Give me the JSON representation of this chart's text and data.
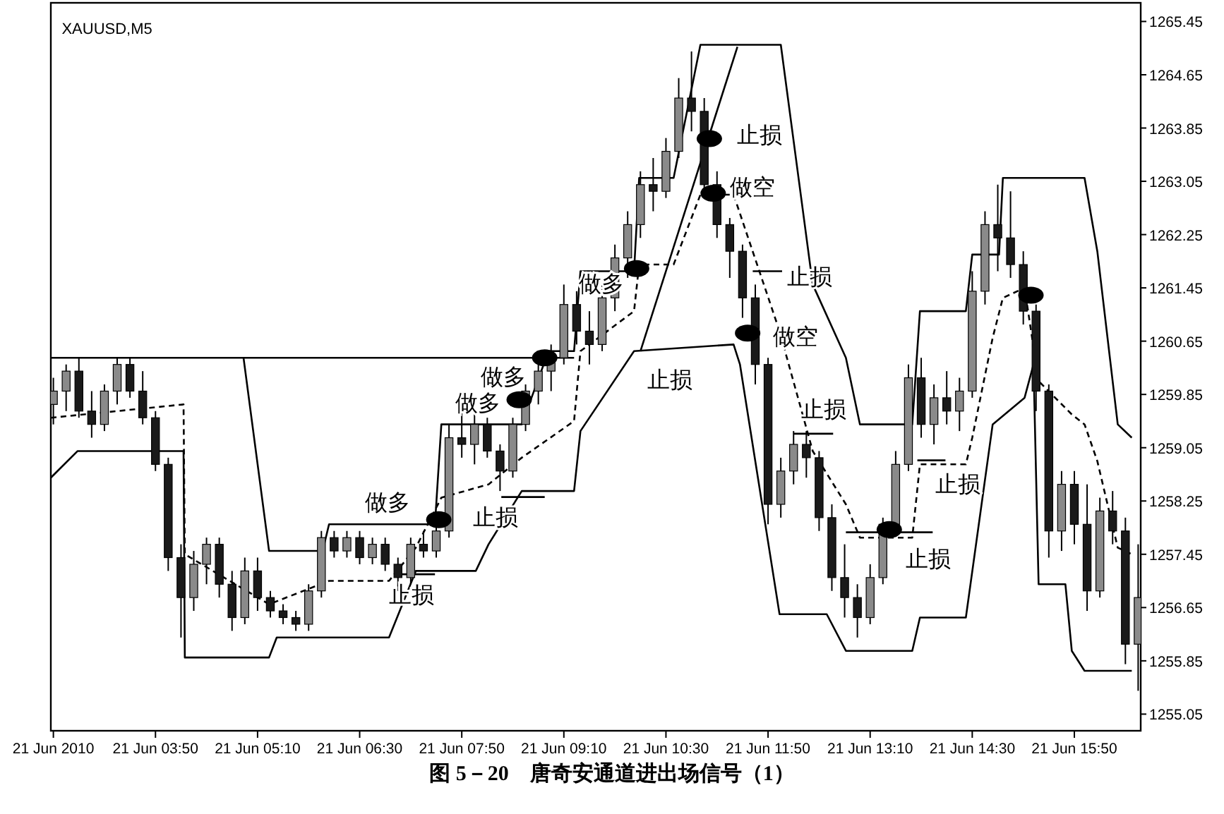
{
  "chart_data": {
    "type": "candlestick",
    "title": "图 5－20　唐奇安通道进出场信号（1）",
    "annotations": [
      "XAUUSD,M5",
      "做多",
      "止损",
      "止损",
      "做多",
      "做多",
      "做多",
      "止损",
      "止损",
      "做空",
      "止损",
      "做空",
      "止损",
      "止损",
      "止损"
    ],
    "x": [
      "2010-06-21T02:30",
      "2010-06-21T02:40",
      "2010-06-21T02:50",
      "2010-06-21T03:00",
      "2010-06-21T03:10",
      "2010-06-21T03:20",
      "2010-06-21T03:30",
      "2010-06-21T03:40",
      "2010-06-21T03:50",
      "2010-06-21T04:00",
      "2010-06-21T04:10",
      "2010-06-21T04:20",
      "2010-06-21T04:30",
      "2010-06-21T04:40",
      "2010-06-21T04:50",
      "2010-06-21T05:00",
      "2010-06-21T05:10",
      "2010-06-21T05:20",
      "2010-06-21T05:30",
      "2010-06-21T05:40",
      "2010-06-21T05:50",
      "2010-06-21T06:00",
      "2010-06-21T06:10",
      "2010-06-21T06:20",
      "2010-06-21T06:30",
      "2010-06-21T06:40",
      "2010-06-21T06:50",
      "2010-06-21T07:00",
      "2010-06-21T07:10",
      "2010-06-21T07:20",
      "2010-06-21T07:30",
      "2010-06-21T07:40",
      "2010-06-21T07:50",
      "2010-06-21T08:00",
      "2010-06-21T08:10",
      "2010-06-21T08:20",
      "2010-06-21T08:30",
      "2010-06-21T08:40",
      "2010-06-21T08:50",
      "2010-06-21T09:00",
      "2010-06-21T09:10",
      "2010-06-21T09:20",
      "2010-06-21T09:30",
      "2010-06-21T09:40",
      "2010-06-21T09:50",
      "2010-06-21T10:00",
      "2010-06-21T10:10",
      "2010-06-21T10:20",
      "2010-06-21T10:30",
      "2010-06-21T10:40",
      "2010-06-21T10:50",
      "2010-06-21T11:00",
      "2010-06-21T11:10",
      "2010-06-21T11:20",
      "2010-06-21T11:30",
      "2010-06-21T11:40",
      "2010-06-21T11:50",
      "2010-06-21T12:00",
      "2010-06-21T12:10",
      "2010-06-21T12:20",
      "2010-06-21T12:30",
      "2010-06-21T12:40",
      "2010-06-21T12:50",
      "2010-06-21T13:00",
      "2010-06-21T13:10",
      "2010-06-21T13:20",
      "2010-06-21T13:30",
      "2010-06-21T13:40",
      "2010-06-21T13:50",
      "2010-06-21T14:00",
      "2010-06-21T14:10",
      "2010-06-21T14:20",
      "2010-06-21T14:30",
      "2010-06-21T14:40",
      "2010-06-21T14:50",
      "2010-06-21T15:00",
      "2010-06-21T15:10",
      "2010-06-21T15:20",
      "2010-06-21T15:30",
      "2010-06-21T15:40",
      "2010-06-21T15:50",
      "2010-06-21T16:00",
      "2010-06-21T16:10",
      "2010-06-21T16:20",
      "2010-06-21T16:30",
      "2010-06-21T16:40"
    ],
    "ohlc": [
      [
        1259.7,
        1260.1,
        1259.4,
        1259.9
      ],
      [
        1259.9,
        1260.3,
        1259.6,
        1260.2
      ],
      [
        1260.2,
        1260.4,
        1259.5,
        1259.6
      ],
      [
        1259.6,
        1259.9,
        1259.2,
        1259.4
      ],
      [
        1259.4,
        1260.0,
        1259.3,
        1259.9
      ],
      [
        1259.9,
        1260.4,
        1259.7,
        1260.3
      ],
      [
        1260.3,
        1260.4,
        1259.8,
        1259.9
      ],
      [
        1259.9,
        1260.2,
        1259.4,
        1259.5
      ],
      [
        1259.5,
        1259.6,
        1258.7,
        1258.8
      ],
      [
        1258.8,
        1258.9,
        1257.2,
        1257.4
      ],
      [
        1257.4,
        1257.6,
        1256.2,
        1256.8
      ],
      [
        1256.8,
        1257.5,
        1256.6,
        1257.3
      ],
      [
        1257.3,
        1257.7,
        1257.0,
        1257.6
      ],
      [
        1257.6,
        1257.7,
        1256.8,
        1257.0
      ],
      [
        1257.0,
        1257.2,
        1256.3,
        1256.5
      ],
      [
        1256.5,
        1257.4,
        1256.4,
        1257.2
      ],
      [
        1257.2,
        1257.4,
        1256.6,
        1256.8
      ],
      [
        1256.8,
        1256.9,
        1256.5,
        1256.6
      ],
      [
        1256.6,
        1256.7,
        1256.4,
        1256.5
      ],
      [
        1256.5,
        1256.6,
        1256.3,
        1256.4
      ],
      [
        1256.4,
        1257.0,
        1256.3,
        1256.9
      ],
      [
        1256.9,
        1257.8,
        1256.8,
        1257.7
      ],
      [
        1257.7,
        1257.8,
        1257.4,
        1257.5
      ],
      [
        1257.5,
        1257.8,
        1257.4,
        1257.7
      ],
      [
        1257.7,
        1257.8,
        1257.3,
        1257.4
      ],
      [
        1257.4,
        1257.7,
        1257.3,
        1257.6
      ],
      [
        1257.6,
        1257.7,
        1257.2,
        1257.3
      ],
      [
        1257.3,
        1257.4,
        1256.9,
        1257.1
      ],
      [
        1257.1,
        1257.7,
        1257.0,
        1257.6
      ],
      [
        1257.6,
        1257.8,
        1257.4,
        1257.5
      ],
      [
        1257.5,
        1257.9,
        1257.4,
        1257.8
      ],
      [
        1257.8,
        1259.4,
        1257.7,
        1259.2
      ],
      [
        1259.2,
        1259.6,
        1258.9,
        1259.1
      ],
      [
        1259.1,
        1259.6,
        1258.8,
        1259.4
      ],
      [
        1259.4,
        1259.5,
        1258.9,
        1259.0
      ],
      [
        1259.0,
        1259.1,
        1258.4,
        1258.7
      ],
      [
        1258.7,
        1259.5,
        1258.6,
        1259.4
      ],
      [
        1259.4,
        1260.0,
        1259.3,
        1259.9
      ],
      [
        1259.9,
        1260.4,
        1259.7,
        1260.2
      ],
      [
        1260.2,
        1260.6,
        1259.9,
        1260.4
      ],
      [
        1260.4,
        1261.5,
        1260.3,
        1261.2
      ],
      [
        1261.2,
        1261.4,
        1260.6,
        1260.8
      ],
      [
        1260.8,
        1261.1,
        1260.3,
        1260.6
      ],
      [
        1260.6,
        1261.5,
        1260.5,
        1261.3
      ],
      [
        1261.3,
        1262.1,
        1261.1,
        1261.9
      ],
      [
        1261.9,
        1262.6,
        1261.6,
        1262.4
      ],
      [
        1262.4,
        1263.2,
        1262.2,
        1263.0
      ],
      [
        1263.0,
        1263.4,
        1262.6,
        1262.9
      ],
      [
        1262.9,
        1263.7,
        1262.8,
        1263.5
      ],
      [
        1263.5,
        1264.6,
        1263.4,
        1264.3
      ],
      [
        1264.3,
        1265.0,
        1263.8,
        1264.1
      ],
      [
        1264.1,
        1264.3,
        1262.8,
        1263.0
      ],
      [
        1263.0,
        1263.2,
        1262.2,
        1262.4
      ],
      [
        1262.4,
        1262.5,
        1261.6,
        1262.0
      ],
      [
        1262.0,
        1262.1,
        1261.0,
        1261.3
      ],
      [
        1261.3,
        1261.5,
        1260.0,
        1260.3
      ],
      [
        1260.3,
        1260.4,
        1257.9,
        1258.2
      ],
      [
        1258.2,
        1258.9,
        1258.0,
        1258.7
      ],
      [
        1258.7,
        1259.3,
        1258.5,
        1259.1
      ],
      [
        1259.1,
        1259.3,
        1258.6,
        1258.9
      ],
      [
        1258.9,
        1259.0,
        1257.8,
        1258.0
      ],
      [
        1258.0,
        1258.2,
        1256.9,
        1257.1
      ],
      [
        1257.1,
        1257.6,
        1256.5,
        1256.8
      ],
      [
        1256.8,
        1257.0,
        1256.2,
        1256.5
      ],
      [
        1256.5,
        1257.3,
        1256.4,
        1257.1
      ],
      [
        1257.1,
        1258.0,
        1257.0,
        1257.9
      ],
      [
        1257.9,
        1259.0,
        1257.8,
        1258.8
      ],
      [
        1258.8,
        1260.3,
        1258.7,
        1260.1
      ],
      [
        1260.1,
        1260.4,
        1259.2,
        1259.4
      ],
      [
        1259.4,
        1260.0,
        1259.1,
        1259.8
      ],
      [
        1259.8,
        1260.2,
        1259.4,
        1259.6
      ],
      [
        1259.6,
        1260.1,
        1259.3,
        1259.9
      ],
      [
        1259.9,
        1261.7,
        1259.8,
        1261.4
      ],
      [
        1261.4,
        1262.6,
        1261.2,
        1262.4
      ],
      [
        1262.4,
        1263.0,
        1261.7,
        1262.2
      ],
      [
        1262.2,
        1262.9,
        1261.6,
        1261.8
      ],
      [
        1261.8,
        1262.0,
        1260.9,
        1261.1
      ],
      [
        1261.1,
        1261.2,
        1259.6,
        1259.9
      ],
      [
        1259.9,
        1260.0,
        1257.4,
        1257.8
      ],
      [
        1257.8,
        1258.7,
        1257.5,
        1258.5
      ],
      [
        1258.5,
        1258.7,
        1257.6,
        1257.9
      ],
      [
        1257.9,
        1258.5,
        1256.6,
        1256.9
      ],
      [
        1256.9,
        1258.3,
        1256.8,
        1258.1
      ],
      [
        1258.1,
        1258.4,
        1257.6,
        1257.8
      ],
      [
        1257.8,
        1258.0,
        1255.8,
        1256.1
      ],
      [
        1256.1,
        1257.6,
        1255.4,
        1256.8
      ]
    ],
    "colors": [
      "#8a8a8a",
      "#8a8a8a",
      "#1a1a1a",
      "#1a1a1a",
      "#8a8a8a",
      "#8a8a8a",
      "#1a1a1a",
      "#1a1a1a",
      "#1a1a1a",
      "#1a1a1a",
      "#1a1a1a",
      "#8a8a8a",
      "#8a8a8a",
      "#1a1a1a",
      "#1a1a1a",
      "#8a8a8a",
      "#1a1a1a",
      "#1a1a1a",
      "#1a1a1a",
      "#1a1a1a",
      "#8a8a8a",
      "#8a8a8a",
      "#1a1a1a",
      "#8a8a8a",
      "#1a1a1a",
      "#8a8a8a",
      "#1a1a1a",
      "#1a1a1a",
      "#8a8a8a",
      "#1a1a1a",
      "#8a8a8a",
      "#8a8a8a",
      "#1a1a1a",
      "#8a8a8a",
      "#1a1a1a",
      "#1a1a1a",
      "#8a8a8a",
      "#8a8a8a",
      "#8a8a8a",
      "#8a8a8a",
      "#8a8a8a",
      "#1a1a1a",
      "#1a1a1a",
      "#8a8a8a",
      "#8a8a8a",
      "#8a8a8a",
      "#8a8a8a",
      "#1a1a1a",
      "#8a8a8a",
      "#8a8a8a",
      "#1a1a1a",
      "#1a1a1a",
      "#1a1a1a",
      "#1a1a1a",
      "#1a1a1a",
      "#1a1a1a",
      "#1a1a1a",
      "#8a8a8a",
      "#8a8a8a",
      "#1a1a1a",
      "#1a1a1a",
      "#1a1a1a",
      "#1a1a1a",
      "#1a1a1a",
      "#8a8a8a",
      "#8a8a8a",
      "#8a8a8a",
      "#8a8a8a",
      "#1a1a1a",
      "#8a8a8a",
      "#1a1a1a",
      "#8a8a8a",
      "#8a8a8a",
      "#8a8a8a",
      "#1a1a1a",
      "#1a1a1a",
      "#1a1a1a",
      "#1a1a1a",
      "#1a1a1a",
      "#8a8a8a",
      "#1a1a1a",
      "#1a1a1a",
      "#8a8a8a",
      "#1a1a1a",
      "#1a1a1a",
      "#8a8a8a"
    ],
    "series": [
      {
        "type": "line",
        "color": "#000000",
        "line_style": "solid",
        "x": [
          "2010-06-21T02:28",
          "2010-06-21T04:59",
          "2010-06-21T05:19",
          "2010-06-21T06:01",
          "2010-06-21T06:06",
          "2010-06-21T07:29",
          "2010-06-21T07:34",
          "2010-06-21T08:37",
          "2010-06-21T08:58",
          "2010-06-21T09:18",
          "2010-06-21T09:23",
          "2010-06-21T10:05",
          "2010-06-21T10:09",
          "2010-06-21T10:36",
          "2010-06-21T10:57",
          "2010-06-21T12:00",
          "2010-06-21T12:25",
          "2010-06-21T12:51",
          "2010-06-21T13:02",
          "2010-06-21T13:43",
          "2010-06-21T13:49",
          "2010-06-21T14:25",
          "2010-06-21T14:30",
          "2010-06-21T14:51",
          "2010-06-21T14:54",
          "2010-06-21T15:58",
          "2010-06-21T16:08",
          "2010-06-21T16:24",
          "2010-06-21T16:35"
        ],
        "values": [
          1260.4,
          1260.4,
          1257.5,
          1257.5,
          1257.9,
          1257.9,
          1259.4,
          1259.4,
          1260.5,
          1260.5,
          1261.7,
          1261.7,
          1263.1,
          1263.1,
          1265.1,
          1265.1,
          1261.5,
          1260.4,
          1259.4,
          1259.4,
          1261.1,
          1261.1,
          1261.95,
          1261.95,
          1263.1,
          1263.1,
          1262.0,
          1259.4,
          1259.2
        ]
      },
      {
        "type": "line",
        "color": "#000000",
        "line_style": "solid",
        "x": [
          "2010-06-21T02:28",
          "2010-06-21T02:49",
          "2010-06-21T04:12",
          "2010-06-21T04:13",
          "2010-06-21T05:19",
          "2010-06-21T05:25",
          "2010-06-21T06:53",
          "2010-06-21T07:14",
          "2010-06-21T08:01",
          "2010-06-21T08:11",
          "2010-06-21T08:37",
          "2010-06-21T09:18",
          "2010-06-21T09:23",
          "2010-06-21T10:05",
          "2010-06-21T11:23",
          "2010-06-21T11:28",
          "2010-06-21T11:59",
          "2010-06-21T12:36",
          "2010-06-21T12:51",
          "2010-06-21T13:43",
          "2010-06-21T13:49",
          "2010-06-21T14:25",
          "2010-06-21T14:46",
          "2010-06-21T15:11",
          "2010-06-21T15:18",
          "2010-06-21T15:22",
          "2010-06-21T15:43",
          "2010-06-21T15:48",
          "2010-06-21T15:58",
          "2010-06-21T16:35"
        ],
        "values": [
          1258.6,
          1259.0,
          1259.0,
          1255.9,
          1255.9,
          1256.2,
          1256.2,
          1257.2,
          1257.2,
          1257.6,
          1258.4,
          1258.4,
          1259.3,
          1260.5,
          1260.6,
          1260.3,
          1256.55,
          1256.55,
          1256.0,
          1256.0,
          1256.5,
          1256.5,
          1259.4,
          1259.8,
          1260.3,
          1257.0,
          1257.0,
          1256.0,
          1255.7,
          1255.7
        ]
      },
      {
        "type": "line",
        "color": "#000000",
        "line_style": "dashed",
        "x": [
          "2010-06-21T02:28",
          "2010-06-21T04:12",
          "2010-06-21T04:13",
          "2010-06-21T05:19",
          "2010-06-21T06:06",
          "2010-06-21T06:53",
          "2010-06-21T07:14",
          "2010-06-21T07:34",
          "2010-06-21T08:11",
          "2010-06-21T08:37",
          "2010-06-21T09:18",
          "2010-06-21T09:23",
          "2010-06-21T10:05",
          "2010-06-21T10:09",
          "2010-06-21T10:36",
          "2010-06-21T10:57",
          "2010-06-21T11:23",
          "2010-06-21T11:59",
          "2010-06-21T12:25",
          "2010-06-21T12:51",
          "2010-06-21T13:02",
          "2010-06-21T13:43",
          "2010-06-21T13:49",
          "2010-06-21T14:25",
          "2010-06-21T14:30",
          "2010-06-21T14:46",
          "2010-06-21T14:54",
          "2010-06-21T15:11",
          "2010-06-21T15:22",
          "2010-06-21T15:48",
          "2010-06-21T15:58",
          "2010-06-21T16:08",
          "2010-06-21T16:24",
          "2010-06-21T16:35"
        ],
        "values": [
          1259.5,
          1259.7,
          1257.45,
          1256.7,
          1257.05,
          1257.05,
          1257.55,
          1258.3,
          1258.5,
          1258.9,
          1259.45,
          1260.5,
          1261.1,
          1261.8,
          1261.8,
          1262.85,
          1262.85,
          1260.8,
          1259.0,
          1258.2,
          1257.7,
          1257.7,
          1258.8,
          1258.8,
          1259.2,
          1260.7,
          1261.3,
          1261.45,
          1260.05,
          1259.55,
          1259.4,
          1258.85,
          1257.55,
          1257.45
        ]
      },
      {
        "type": "line",
        "color": "#000000",
        "line_style": "solid",
        "x": [
          "2010-06-21T04:59",
          "2010-06-21T09:18"
        ],
        "values": [
          1260.4,
          1260.4
        ]
      },
      {
        "type": "line",
        "color": "#000000",
        "line_style": "solid",
        "x": [
          "2010-06-21T10:10",
          "2010-06-21T11:26"
        ],
        "values": [
          1260.5,
          1265.07
        ]
      },
      {
        "type": "line",
        "color": "#000000",
        "line_style": "solid",
        "x": [
          "2010-06-21T06:58",
          "2010-06-21T07:29"
        ],
        "values": [
          1257.15,
          1257.15
        ]
      },
      {
        "type": "line",
        "color": "#000000",
        "line_style": "solid",
        "x": [
          "2010-06-21T08:21",
          "2010-06-21T08:55"
        ],
        "values": [
          1258.31,
          1258.31
        ]
      },
      {
        "type": "line",
        "color": "#000000",
        "line_style": "solid",
        "x": [
          "2010-06-21T11:38",
          "2010-06-21T12:01"
        ],
        "values": [
          1261.7,
          1261.7
        ]
      },
      {
        "type": "line",
        "color": "#000000",
        "line_style": "solid",
        "x": [
          "2010-06-21T12:10",
          "2010-06-21T12:41"
        ],
        "values": [
          1259.26,
          1259.26
        ]
      },
      {
        "type": "line",
        "color": "#000000",
        "line_style": "solid",
        "x": [
          "2010-06-21T13:47",
          "2010-06-21T14:09"
        ],
        "values": [
          1258.86,
          1258.86
        ]
      },
      {
        "type": "line",
        "color": "#000000",
        "line_style": "solid",
        "x": [
          "2010-06-21T12:51",
          "2010-06-21T13:59"
        ],
        "values": [
          1257.78,
          1257.78
        ]
      },
      {
        "type": "scatter",
        "color": "#000000",
        "marker": "circle",
        "x": [
          "2010-06-21T07:32",
          "2010-06-21T08:35",
          "2010-06-21T08:55",
          "2010-06-21T10:07",
          "2010-06-21T11:04",
          "2010-06-21T11:07",
          "2010-06-21T11:34",
          "2010-06-21T13:25",
          "2010-06-21T15:16"
        ],
        "values": [
          1257.97,
          1259.77,
          1260.4,
          1261.74,
          1263.69,
          1262.87,
          1260.77,
          1257.82,
          1261.34
        ]
      }
    ],
    "xlim": [
      "2010-06-21T02:28",
      "2010-06-21T16:42"
    ],
    "ylim": [
      1254.8,
      1265.73
    ],
    "xticks": [
      {
        "value": "2010-06-21T02:30",
        "label": "21 Jun 2010"
      },
      {
        "value": "2010-06-21T03:50",
        "label": "21 Jun 03:50"
      },
      {
        "value": "2010-06-21T05:10",
        "label": "21 Jun 05:10"
      },
      {
        "value": "2010-06-21T06:30",
        "label": "21 Jun 06:30"
      },
      {
        "value": "2010-06-21T07:50",
        "label": "21 Jun 07:50"
      },
      {
        "value": "2010-06-21T09:10",
        "label": "21 Jun 09:10"
      },
      {
        "value": "2010-06-21T10:30",
        "label": "21 Jun 10:30"
      },
      {
        "value": "2010-06-21T11:50",
        "label": "21 Jun 11:50"
      },
      {
        "value": "2010-06-21T13:10",
        "label": "21 Jun 13:10"
      },
      {
        "value": "2010-06-21T14:30",
        "label": "21 Jun 14:30"
      },
      {
        "value": "2010-06-21T15:50",
        "label": "21 Jun 15:50"
      }
    ],
    "yticks": [
      1255.05,
      1255.85,
      1256.65,
      1257.45,
      1258.25,
      1259.05,
      1259.85,
      1260.65,
      1261.45,
      1262.25,
      1263.05,
      1263.85,
      1264.65,
      1265.45
    ]
  }
}
